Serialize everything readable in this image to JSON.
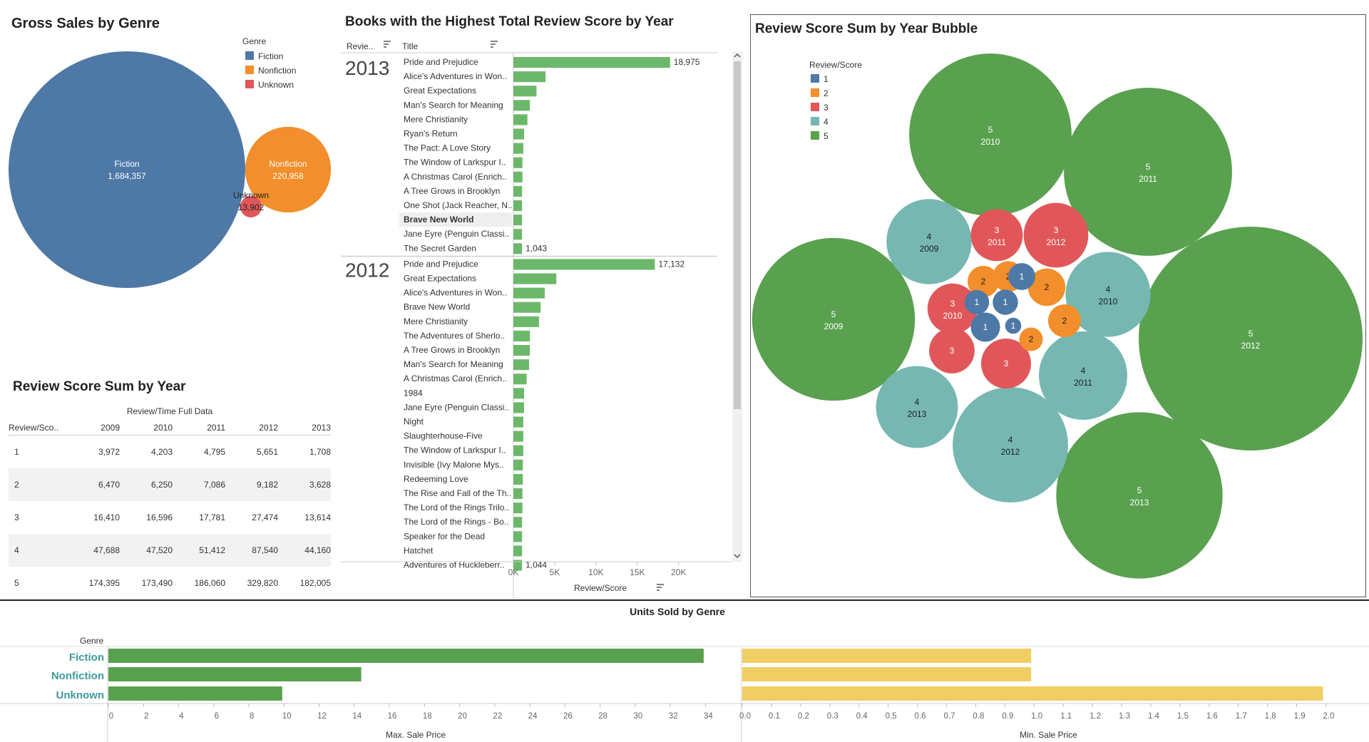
{
  "dashboard": {
    "gross_sales_title": "Gross Sales by Genre",
    "books_title": "Books with the Highest Total Review Score by Year",
    "bubble_title": "Review Score Sum by Year Bubble",
    "table_title": "Review Score Sum by Year",
    "units_title": "Units Sold by Genre"
  },
  "colors": {
    "fiction": "#4e79a7",
    "nonfiction": "#f28e2b",
    "unknown": "#e15759",
    "score1": "#4e79a7",
    "score2": "#f28e2b",
    "score3": "#e15759",
    "score4": "#76b7b2",
    "score5": "#59a14f",
    "bar_green": "#6cb86a",
    "bar_yellow": "#f1ce63",
    "genre_label": "#3f9a9a"
  },
  "chart_data": [
    {
      "id": "gross_sales",
      "type": "bubble",
      "title": "Gross Sales by Genre",
      "legend_title": "Genre",
      "legend_position": "top-right",
      "categories": [
        "Fiction",
        "Nonfiction",
        "Unknown"
      ],
      "values": [
        1684357,
        220958,
        13902
      ],
      "value_labels": [
        "1,684,357",
        "220,958",
        "13,902"
      ]
    },
    {
      "id": "review_table",
      "type": "table",
      "title": "Review Score Sum by Year",
      "column_group": "Review/Time Full Data",
      "row_header": "Review/Sco..",
      "columns": [
        "2009",
        "2010",
        "2011",
        "2012",
        "2013"
      ],
      "rows": [
        {
          "label": "1",
          "values": [
            "3,972",
            "4,203",
            "4,795",
            "5,651",
            "1,708"
          ]
        },
        {
          "label": "2",
          "values": [
            "6,470",
            "6,250",
            "7,086",
            "9,182",
            "3,628"
          ]
        },
        {
          "label": "3",
          "values": [
            "16,410",
            "16,596",
            "17,781",
            "27,474",
            "13,614"
          ]
        },
        {
          "label": "4",
          "values": [
            "47,688",
            "47,520",
            "51,412",
            "87,540",
            "44,160"
          ]
        },
        {
          "label": "5",
          "values": [
            "174,395",
            "173,490",
            "186,060",
            "329,820",
            "182,005"
          ]
        }
      ]
    },
    {
      "id": "books_by_year",
      "type": "bar",
      "title": "Books with the Highest Total Review Score by Year",
      "col1_header": "Revie..",
      "col2_header": "Title",
      "xlabel": "Review/Score",
      "xlim": [
        0,
        24000
      ],
      "ticks": [
        "0K",
        "5K",
        "10K",
        "15K",
        "20K"
      ],
      "tick_values": [
        0,
        5000,
        10000,
        15000,
        20000
      ],
      "groups": [
        {
          "year": "2013",
          "titles": [
            "Pride and Prejudice",
            "Alice's Adventures in Won..",
            "Great Expectations",
            "Man's Search for Meaning",
            "Mere Christianity",
            "Ryan's Return",
            "The Pact: A Love Story",
            "The Window of Larkspur I..",
            "A Christmas Carol (Enrich..",
            "A Tree Grows in Brooklyn",
            "One Shot (Jack Reacher, N..",
            "Brave New World",
            "Jane Eyre (Penguin Classi..",
            "The Secret Garden"
          ],
          "values": [
            18975,
            3900,
            2800,
            2000,
            1700,
            1300,
            1200,
            1100,
            1100,
            1050,
            1050,
            1050,
            1040,
            1043
          ],
          "labels": [
            "18,975",
            "",
            "",
            "",
            "",
            "",
            "",
            "",
            "",
            "",
            "",
            "",
            "",
            "1,043"
          ]
        },
        {
          "year": "2012",
          "titles": [
            "Pride and Prejudice",
            "Great Expectations",
            "Alice's Adventures in Won..",
            "Brave New World",
            "Mere Christianity",
            "The Adventures of Sherlo..",
            "A Tree Grows in Brooklyn",
            "Man's Search for Meaning",
            "A Christmas Carol (Enrich..",
            "1984",
            "Jane Eyre (Penguin Classi..",
            "Night",
            "Slaughterhouse-Five",
            "The Window of Larkspur I..",
            "Invisible (Ivy Malone Mys..",
            "Redeeming Love",
            "The Rise and Fall of the Th..",
            "The Lord of the Rings Trilo..",
            "The Lord of the Rings - Bo..",
            "Speaker for the Dead",
            "Hatchet",
            "Adventures of Huckleberr.."
          ],
          "values": [
            17132,
            5200,
            3800,
            3300,
            3100,
            2000,
            2000,
            1900,
            1600,
            1300,
            1300,
            1200,
            1200,
            1200,
            1150,
            1150,
            1100,
            1100,
            1050,
            1050,
            1050,
            1044
          ],
          "labels": [
            "17,132",
            "",
            "",
            "",
            "",
            "",
            "",
            "",
            "",
            "",
            "",
            "",
            "",
            "",
            "",
            "",
            "",
            "",
            "",
            "",
            "",
            "1,044"
          ]
        }
      ]
    },
    {
      "id": "bubble_by_year",
      "type": "bubble",
      "title": "Review Score Sum by Year Bubble",
      "legend_title": "Review/Score",
      "legend_position": "top-left",
      "legend": [
        "1",
        "2",
        "3",
        "4",
        "5"
      ],
      "bubbles": [
        {
          "score": "5",
          "year": "2010",
          "value": 173490
        },
        {
          "score": "5",
          "year": "2011",
          "value": 186060
        },
        {
          "score": "5",
          "year": "2009",
          "value": 174395
        },
        {
          "score": "5",
          "year": "2012",
          "value": 329820
        },
        {
          "score": "5",
          "year": "2013",
          "value": 182005
        },
        {
          "score": "4",
          "year": "2009",
          "value": 47688
        },
        {
          "score": "4",
          "year": "2010",
          "value": 47520
        },
        {
          "score": "4",
          "year": "2011",
          "value": 51412
        },
        {
          "score": "4",
          "year": "2013",
          "value": 44160
        },
        {
          "score": "4",
          "year": "2012",
          "value": 87540
        },
        {
          "score": "3",
          "year": "2011",
          "value": 17781
        },
        {
          "score": "3",
          "year": "2012",
          "value": 27474
        },
        {
          "score": "3",
          "year": "2010",
          "value": 16596
        },
        {
          "score": "3",
          "year": "",
          "value": 16410
        },
        {
          "score": "3",
          "year": "",
          "value": 13614
        },
        {
          "score": "2",
          "year": "",
          "value": 6470
        },
        {
          "score": "2",
          "year": "",
          "value": 6250
        },
        {
          "score": "2",
          "year": "",
          "value": 9182
        },
        {
          "score": "2",
          "year": "",
          "value": 7086
        },
        {
          "score": "2",
          "year": "",
          "value": 3628
        },
        {
          "score": "1",
          "year": "",
          "value": 3972
        },
        {
          "score": "1",
          "year": "",
          "value": 4203
        },
        {
          "score": "1",
          "year": "",
          "value": 4795
        },
        {
          "score": "1",
          "year": "",
          "value": 5651
        },
        {
          "score": "1",
          "year": "",
          "value": 1708
        }
      ]
    },
    {
      "id": "units_sold",
      "type": "bar",
      "title": "Units Sold by Genre",
      "row_header": "Genre",
      "categories": [
        "Fiction",
        "Nonfiction",
        "Unknown"
      ],
      "series": [
        {
          "name": "Max. Sale Price",
          "values": [
            33.9,
            14.4,
            9.9
          ],
          "xlim": [
            0,
            35
          ],
          "ticks": [
            "0",
            "2",
            "4",
            "6",
            "8",
            "10",
            "12",
            "14",
            "16",
            "18",
            "20",
            "22",
            "24",
            "26",
            "28",
            "30",
            "32",
            "34"
          ],
          "tick_values": [
            0,
            2,
            4,
            6,
            8,
            10,
            12,
            14,
            16,
            18,
            20,
            22,
            24,
            26,
            28,
            30,
            32,
            34
          ]
        },
        {
          "name": "Min. Sale Price",
          "values": [
            0.99,
            0.99,
            1.99
          ],
          "xlim": [
            0,
            2.05
          ],
          "ticks": [
            "0.0",
            "0.1",
            "0.2",
            "0.3",
            "0.4",
            "0.5",
            "0.6",
            "0.7",
            "0.8",
            "0.9",
            "1.0",
            "1.1",
            "1.2",
            "1.3",
            "1.4",
            "1.5",
            "1.6",
            "1.7",
            "1.8",
            "1.9",
            "2.0"
          ],
          "tick_values": [
            0,
            0.1,
            0.2,
            0.3,
            0.4,
            0.5,
            0.6,
            0.7,
            0.8,
            0.9,
            1.0,
            1.1,
            1.2,
            1.3,
            1.4,
            1.5,
            1.6,
            1.7,
            1.8,
            1.9,
            2.0
          ]
        }
      ]
    }
  ]
}
